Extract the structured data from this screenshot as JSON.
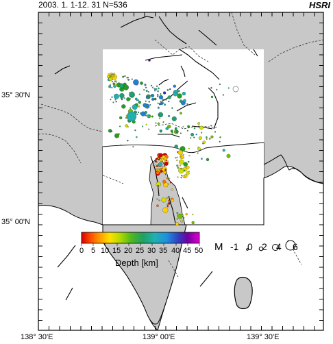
{
  "header": {
    "title": "2003. 1. 1-12. 31  N=536",
    "brand": "HSRI"
  },
  "axes": {
    "lat_labels": [
      "35° 30'N",
      "35° 00'N"
    ],
    "lon_labels": [
      "138° 30'E",
      "139° 00'E",
      "139° 30'E"
    ]
  },
  "legend": {
    "depth_title": "Depth [km]",
    "depth_ticks": [
      "0",
      "5",
      "10",
      "15",
      "20",
      "25",
      "30",
      "35",
      "40",
      "45",
      "50"
    ],
    "magnitude_label": "M",
    "magnitude_values": [
      "-1",
      "0",
      "2",
      "4",
      "6"
    ]
  },
  "colors": {
    "land": "#c8c8c8",
    "sea": "#ffffff",
    "coast": "#000000",
    "depth_scale": [
      "#d60000",
      "#ff7000",
      "#ffd000",
      "#d0e000",
      "#70c000",
      "#20a020",
      "#20a070",
      "#20b0b0",
      "#2080d0",
      "#3030c0",
      "#600090",
      "#c000c0"
    ]
  }
}
